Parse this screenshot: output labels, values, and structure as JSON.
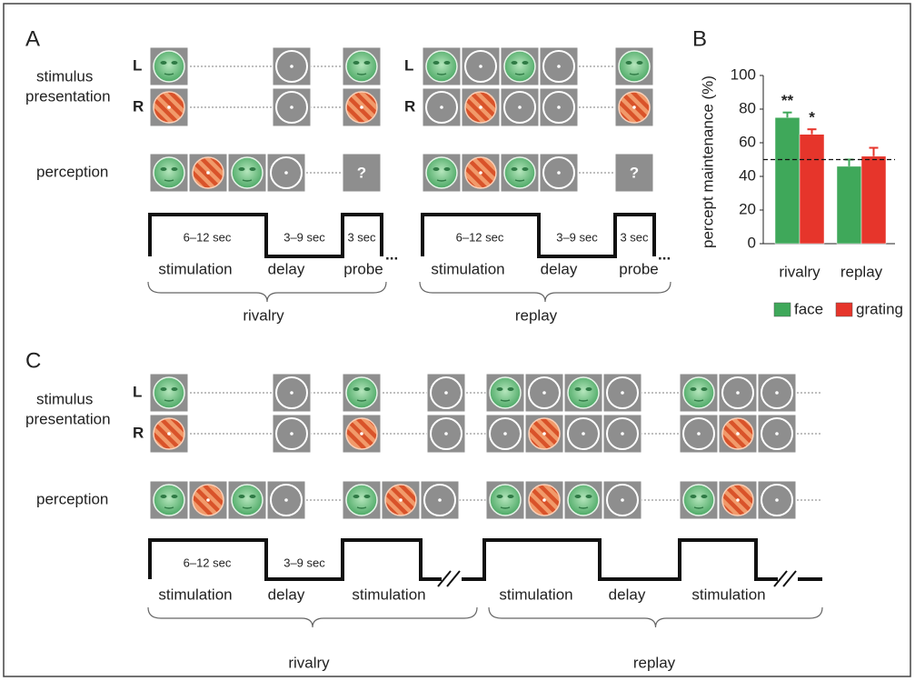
{
  "panel_a": {
    "label": "A",
    "stimulus_label": [
      "stimulus",
      "presentation"
    ],
    "perception_label": "perception",
    "eyes": [
      "L",
      "R",
      "L",
      "R"
    ],
    "probe": [
      "?",
      "?"
    ],
    "rivalry": {
      "durations": [
        "6–12 sec",
        "3–9 sec",
        "3 sec"
      ],
      "phases": [
        "stimulation",
        "delay",
        "probe"
      ],
      "condition": "rivalry"
    },
    "replay": {
      "durations": [
        "6–12 sec",
        "3–9 sec",
        "3 sec"
      ],
      "phases": [
        "stimulation",
        "delay",
        "probe"
      ],
      "condition": "replay"
    }
  },
  "chart_data": {
    "type": "bar",
    "label": "B",
    "y_label": "percept maintenance (%)",
    "categories": [
      "rivalry",
      "replay"
    ],
    "series": [
      {
        "name": "face",
        "color": "#3fa85a",
        "values": [
          75,
          46
        ],
        "errors": [
          3,
          4
        ],
        "significance": [
          "**",
          null
        ]
      },
      {
        "name": "grating",
        "color": "#e6352b",
        "values": [
          65,
          52
        ],
        "errors": [
          3,
          5
        ],
        "significance": [
          "*",
          null
        ]
      }
    ],
    "ylim": [
      0,
      100
    ],
    "yticks": [
      0,
      20,
      40,
      60,
      80,
      100
    ],
    "reference_line": 50
  },
  "panel_c": {
    "label": "C",
    "stimulus_label": [
      "stimulus",
      "presentation"
    ],
    "perception_label": "perception",
    "eyes": [
      "L",
      "R"
    ],
    "durations": [
      "6–12 sec",
      "3–9 sec"
    ],
    "phases": [
      "stimulation",
      "delay",
      "stimulation",
      "stimulation",
      "delay",
      "stimulation"
    ],
    "conditions": [
      "rivalry",
      "replay"
    ]
  }
}
